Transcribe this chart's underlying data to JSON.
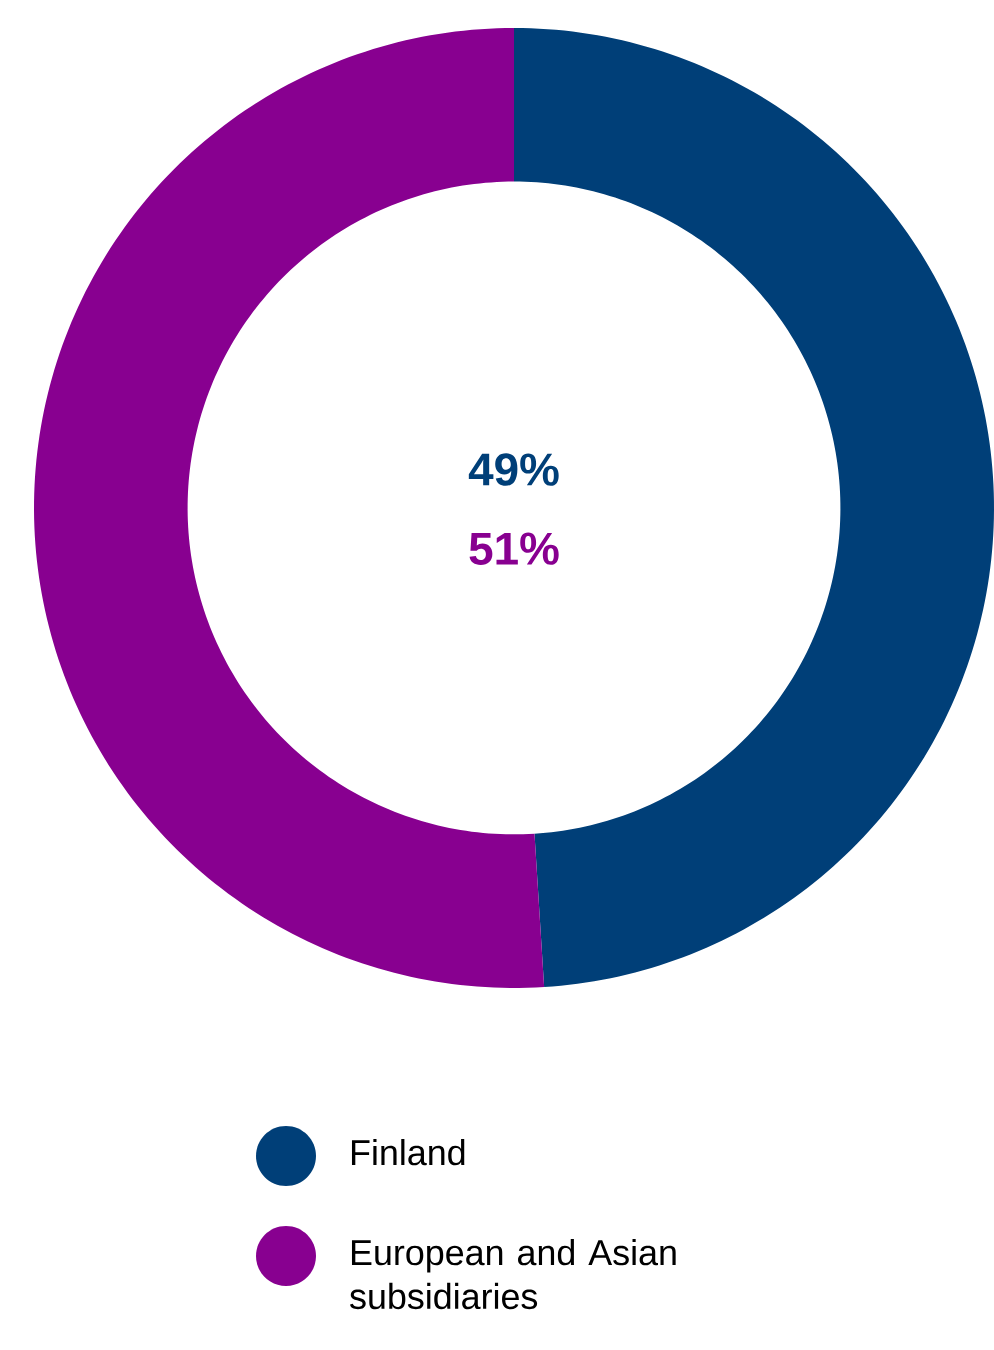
{
  "chart_data": {
    "type": "donut",
    "categories": [
      "Finland",
      "European and Asian subsidiaries"
    ],
    "values": [
      49,
      51
    ],
    "colors": [
      "#003f78",
      "#880090"
    ],
    "value_labels": [
      "49%",
      "51%"
    ],
    "legend": "bottom"
  }
}
